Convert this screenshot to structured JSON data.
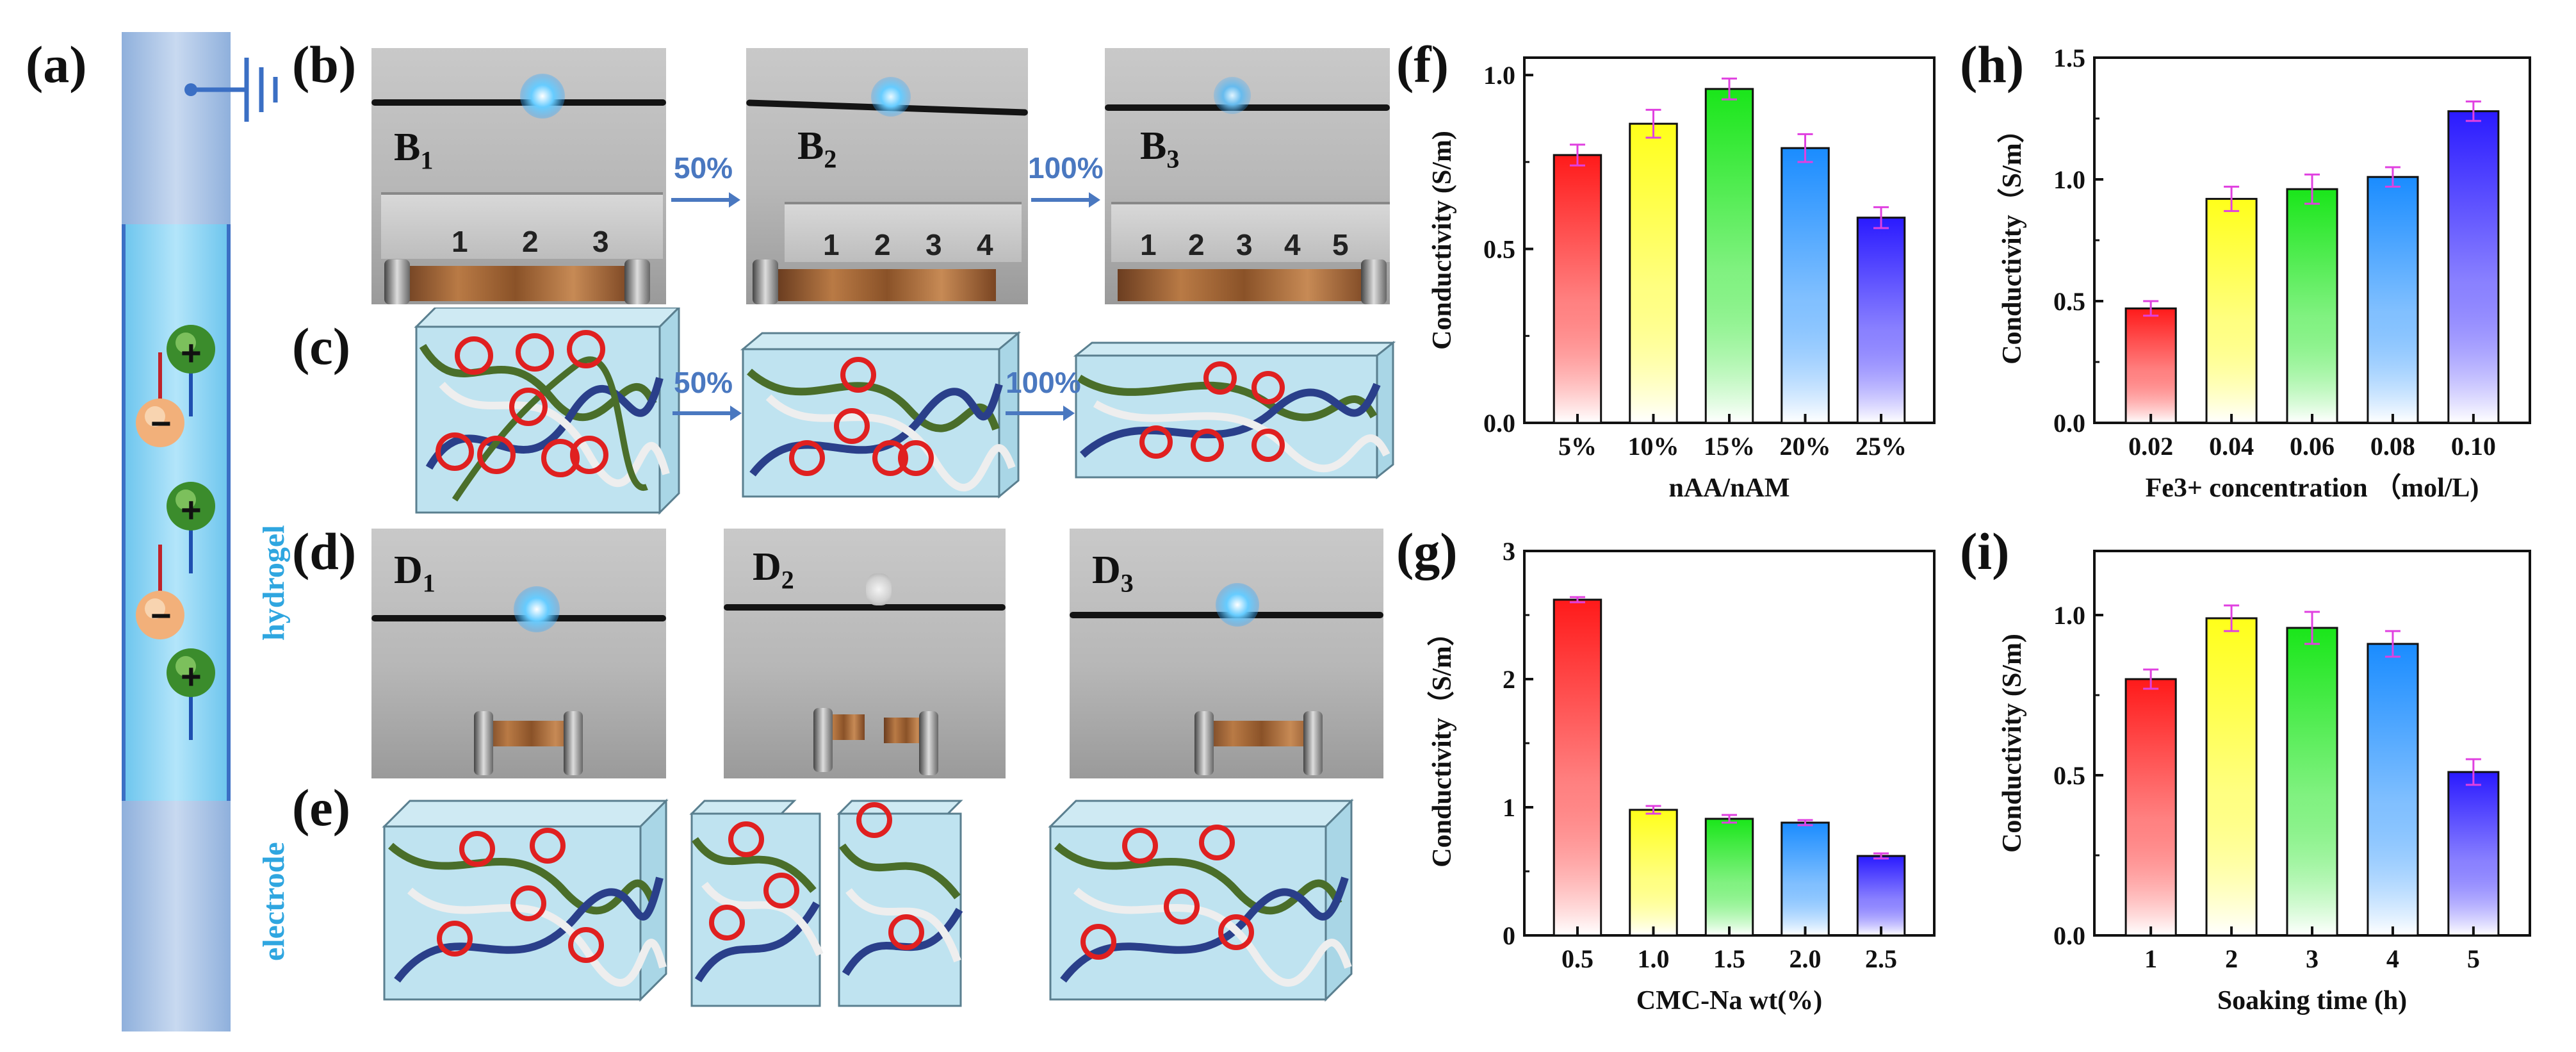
{
  "panel_labels": {
    "a": "(a)",
    "b": "(b)",
    "c": "(c)",
    "d": "(d)",
    "e": "(e)",
    "f": "(f)",
    "g": "(g)",
    "h": "(h)",
    "i": "(i)"
  },
  "schematic": {
    "hydrogel_label": "hydrogel",
    "electrode_label": "electrode",
    "cation_symbol": "+",
    "anion_symbol": "−"
  },
  "photos_b": [
    {
      "label": "B",
      "sub": "1"
    },
    {
      "label": "B",
      "sub": "2"
    },
    {
      "label": "B",
      "sub": "3"
    }
  ],
  "photos_d": [
    {
      "label": "D",
      "sub": "1"
    },
    {
      "label": "D",
      "sub": "2"
    },
    {
      "label": "D",
      "sub": "3"
    }
  ],
  "arrows": {
    "stretch1": "50%",
    "stretch2": "100%"
  },
  "ruler_numbers": {
    "b1": [
      "1",
      "2",
      "3"
    ],
    "b2": [
      "1",
      "2",
      "3",
      "4"
    ],
    "b3": [
      "1",
      "2",
      "3",
      "4",
      "5"
    ]
  },
  "colors": {
    "arrow": "#4a78c0",
    "led": "#33aaff",
    "error": "#e040e0"
  },
  "chart_data": [
    {
      "id": "f",
      "type": "bar",
      "categories": [
        "5%",
        "10%",
        "15%",
        "20%",
        "25%"
      ],
      "values": [
        0.77,
        0.86,
        0.96,
        0.79,
        0.59
      ],
      "errors": [
        0.03,
        0.04,
        0.03,
        0.04,
        0.03
      ],
      "xlabel": "nAA/nAM",
      "ylabel": "Conductivity (S/m)",
      "ylim": [
        0,
        1.05
      ],
      "yticks": [
        "0.0",
        "0.5",
        "1.0"
      ],
      "ytick_values": [
        0,
        0.5,
        1.0
      ]
    },
    {
      "id": "g",
      "type": "bar",
      "categories": [
        "0.5",
        "1.0",
        "1.5",
        "2.0",
        "2.5"
      ],
      "values": [
        2.62,
        0.98,
        0.91,
        0.88,
        0.62
      ],
      "errors": [
        0.02,
        0.03,
        0.03,
        0.02,
        0.02
      ],
      "xlabel": "CMC-Na wt(%)",
      "ylabel": "Conductivity（S/m）",
      "ylim": [
        0,
        3
      ],
      "yticks": [
        "0",
        "1",
        "2",
        "3"
      ],
      "ytick_values": [
        0,
        1,
        2,
        3
      ]
    },
    {
      "id": "h",
      "type": "bar",
      "categories": [
        "0.02",
        "0.04",
        "0.06",
        "0.08",
        "0.10"
      ],
      "values": [
        0.47,
        0.92,
        0.96,
        1.01,
        1.28
      ],
      "errors": [
        0.03,
        0.05,
        0.06,
        0.04,
        0.04
      ],
      "xlabel": "Fe3+ concentration （mol/L)",
      "ylabel": "Conductivity（S/m）",
      "ylim": [
        0,
        1.5
      ],
      "yticks": [
        "0.0",
        "0.5",
        "1.0",
        "1.5"
      ],
      "ytick_values": [
        0,
        0.5,
        1.0,
        1.5
      ]
    },
    {
      "id": "i",
      "type": "bar",
      "categories": [
        "1",
        "2",
        "3",
        "4",
        "5"
      ],
      "values": [
        0.8,
        0.99,
        0.96,
        0.91,
        0.51
      ],
      "errors": [
        0.03,
        0.04,
        0.05,
        0.04,
        0.04
      ],
      "xlabel": "Soaking time (h)",
      "ylabel": "Conductivity (S/m)",
      "ylim": [
        0,
        1.2
      ],
      "yticks": [
        "0.0",
        "0.5",
        "1.0"
      ],
      "ytick_values": [
        0,
        0.5,
        1.0
      ]
    }
  ],
  "bar_colors": [
    "#ff1a1a",
    "#ffff1a",
    "#1ae61a",
    "#1a8cff",
    "#2a1aff"
  ]
}
